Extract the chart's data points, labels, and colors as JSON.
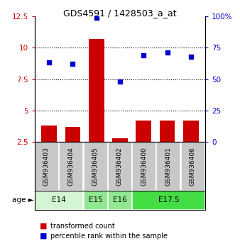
{
  "title": "GDS4591 / 1428503_a_at",
  "samples": [
    "GSM936403",
    "GSM936404",
    "GSM936405",
    "GSM936402",
    "GSM936400",
    "GSM936401",
    "GSM936406"
  ],
  "transformed_count": [
    3.8,
    3.7,
    10.7,
    2.8,
    4.2,
    4.2,
    4.2
  ],
  "percentile_rank": [
    63,
    62,
    99,
    48,
    69,
    71,
    68
  ],
  "bar_color": "#cc0000",
  "dot_color": "#0000cc",
  "ylim_left": [
    2.5,
    12.5
  ],
  "ylim_right": [
    0,
    100
  ],
  "yticks_left": [
    2.5,
    5.0,
    7.5,
    10.0,
    12.5
  ],
  "ytick_labels_left": [
    "2.5",
    "5",
    "7.5",
    "10",
    "12.5"
  ],
  "yticks_right": [
    0,
    25,
    50,
    75,
    100
  ],
  "ytick_labels_right": [
    "0",
    "25",
    "50",
    "75",
    "100%"
  ],
  "age_groups": [
    {
      "label": "E14",
      "samples": [
        "GSM936403",
        "GSM936404"
      ],
      "color": "#d4f5d4"
    },
    {
      "label": "E15",
      "samples": [
        "GSM936405"
      ],
      "color": "#90e890"
    },
    {
      "label": "E16",
      "samples": [
        "GSM936402"
      ],
      "color": "#90e890"
    },
    {
      "label": "E17.5",
      "samples": [
        "GSM936400",
        "GSM936401",
        "GSM936406"
      ],
      "color": "#44dd44"
    }
  ],
  "sample_bar_bg": "#c8c8c8",
  "legend_labels": [
    "transformed count",
    "percentile rank within the sample"
  ],
  "ylabel_left_color": "#cc0000",
  "ylabel_right_color": "#0000cc",
  "age_label": "age",
  "grid_dotted_at": [
    5.0,
    7.5,
    10.0
  ]
}
